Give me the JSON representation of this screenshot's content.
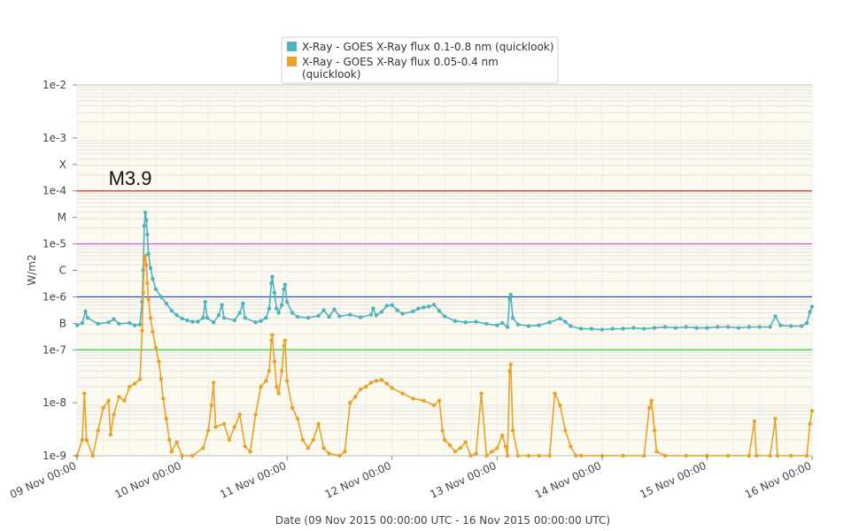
{
  "chart_data": {
    "type": "line",
    "title": "",
    "xlabel": "Date (09 Nov 2015 00:00:00 UTC - 16 Nov 2015 00:00:00 UTC)",
    "ylabel": "W/m2",
    "y_scale": "log",
    "ylim": [
      1e-09,
      0.01
    ],
    "xlim_days": [
      0,
      7
    ],
    "grid": true,
    "legend_position": "top-center",
    "y_ticks": [
      {
        "value": 0.01,
        "label": "1e-2"
      },
      {
        "value": 0.001,
        "label": "1e-3"
      },
      {
        "value": 0.0003162,
        "label": "X"
      },
      {
        "value": 0.0001,
        "label": "1e-4"
      },
      {
        "value": 3.162e-05,
        "label": "M"
      },
      {
        "value": 1e-05,
        "label": "1e-5"
      },
      {
        "value": 3.162e-06,
        "label": "C"
      },
      {
        "value": 1e-06,
        "label": "1e-6"
      },
      {
        "value": 3.162e-07,
        "label": "B"
      },
      {
        "value": 1e-07,
        "label": "1e-7"
      },
      {
        "value": 1e-08,
        "label": "1e-8"
      },
      {
        "value": 1e-09,
        "label": "1e-9"
      }
    ],
    "x_ticks": [
      {
        "day": 0,
        "label": "09 Nov 00:00"
      },
      {
        "day": 1,
        "label": "10 Nov 00:00"
      },
      {
        "day": 2,
        "label": "11 Nov 00:00"
      },
      {
        "day": 3,
        "label": "12 Nov 00:00"
      },
      {
        "day": 4,
        "label": "13 Nov 00:00"
      },
      {
        "day": 5,
        "label": "14 Nov 00:00"
      },
      {
        "day": 6,
        "label": "15 Nov 00:00"
      },
      {
        "day": 7,
        "label": "16 Nov 00:00"
      }
    ],
    "threshold_lines": [
      {
        "value": 0.0001,
        "color": "#d62728"
      },
      {
        "value": 1e-05,
        "color": "#e040e0"
      },
      {
        "value": 1e-06,
        "color": "#1f3fb4"
      },
      {
        "value": 1e-07,
        "color": "#2ecc40"
      }
    ],
    "annotations": [
      {
        "text": "M3.9",
        "day": 0.3,
        "value": 0.00013
      }
    ],
    "series": [
      {
        "name": "X-Ray - GOES X-Ray flux 0.1-0.8 nm (quicklook)",
        "color": "#4db3bf",
        "points": [
          [
            0.0,
            2.9e-07
          ],
          [
            0.05,
            3.2e-07
          ],
          [
            0.08,
            5.3e-07
          ],
          [
            0.1,
            4e-07
          ],
          [
            0.2,
            3.1e-07
          ],
          [
            0.3,
            3.3e-07
          ],
          [
            0.35,
            3.8e-07
          ],
          [
            0.4,
            3.1e-07
          ],
          [
            0.5,
            3.2e-07
          ],
          [
            0.55,
            2.9e-07
          ],
          [
            0.6,
            3e-07
          ],
          [
            0.62,
            8e-07
          ],
          [
            0.63,
            3.2e-06
          ],
          [
            0.64,
            2.2e-05
          ],
          [
            0.65,
            3.9e-05
          ],
          [
            0.66,
            2.8e-05
          ],
          [
            0.67,
            1.5e-05
          ],
          [
            0.68,
            6.5e-06
          ],
          [
            0.7,
            3.5e-06
          ],
          [
            0.72,
            2.2e-06
          ],
          [
            0.75,
            1.4e-06
          ],
          [
            0.8,
            1e-06
          ],
          [
            0.85,
            7.5e-07
          ],
          [
            0.9,
            5.5e-07
          ],
          [
            0.95,
            4.5e-07
          ],
          [
            1.0,
            3.9e-07
          ],
          [
            1.05,
            3.6e-07
          ],
          [
            1.1,
            3.4e-07
          ],
          [
            1.15,
            3.4e-07
          ],
          [
            1.2,
            4e-07
          ],
          [
            1.22,
            8e-07
          ],
          [
            1.24,
            4e-07
          ],
          [
            1.3,
            3.3e-07
          ],
          [
            1.35,
            4.5e-07
          ],
          [
            1.38,
            7e-07
          ],
          [
            1.4,
            4e-07
          ],
          [
            1.5,
            3.6e-07
          ],
          [
            1.55,
            5e-07
          ],
          [
            1.58,
            7.5e-07
          ],
          [
            1.6,
            4e-07
          ],
          [
            1.7,
            3.3e-07
          ],
          [
            1.75,
            3.5e-07
          ],
          [
            1.8,
            4e-07
          ],
          [
            1.83,
            6e-07
          ],
          [
            1.85,
            1.8e-06
          ],
          [
            1.86,
            2.4e-06
          ],
          [
            1.88,
            1.2e-06
          ],
          [
            1.9,
            6e-07
          ],
          [
            1.92,
            5e-07
          ],
          [
            1.95,
            7e-07
          ],
          [
            1.97,
            1.4e-06
          ],
          [
            1.98,
            1.7e-06
          ],
          [
            2.0,
            8e-07
          ],
          [
            2.05,
            5e-07
          ],
          [
            2.1,
            4.2e-07
          ],
          [
            2.2,
            4e-07
          ],
          [
            2.3,
            4.4e-07
          ],
          [
            2.35,
            5.6e-07
          ],
          [
            2.4,
            4.2e-07
          ],
          [
            2.45,
            5.8e-07
          ],
          [
            2.5,
            4.3e-07
          ],
          [
            2.6,
            4.6e-07
          ],
          [
            2.7,
            4.1e-07
          ],
          [
            2.8,
            4.6e-07
          ],
          [
            2.82,
            6e-07
          ],
          [
            2.85,
            4.5e-07
          ],
          [
            2.9,
            5.2e-07
          ],
          [
            2.95,
            6.8e-07
          ],
          [
            3.0,
            7e-07
          ],
          [
            3.05,
            5.6e-07
          ],
          [
            3.1,
            4.8e-07
          ],
          [
            3.2,
            5.3e-07
          ],
          [
            3.25,
            6e-07
          ],
          [
            3.3,
            6.3e-07
          ],
          [
            3.35,
            6.6e-07
          ],
          [
            3.4,
            7.1e-07
          ],
          [
            3.45,
            5.4e-07
          ],
          [
            3.5,
            4.3e-07
          ],
          [
            3.6,
            3.5e-07
          ],
          [
            3.7,
            3.3e-07
          ],
          [
            3.8,
            3.4e-07
          ],
          [
            3.9,
            3.1e-07
          ],
          [
            4.0,
            2.9e-07
          ],
          [
            4.05,
            3.2e-07
          ],
          [
            4.1,
            2.7e-07
          ],
          [
            4.12,
            9e-07
          ],
          [
            4.13,
            1.1e-06
          ],
          [
            4.15,
            4e-07
          ],
          [
            4.2,
            3e-07
          ],
          [
            4.3,
            2.8e-07
          ],
          [
            4.4,
            2.9e-07
          ],
          [
            4.5,
            3.3e-07
          ],
          [
            4.6,
            3.9e-07
          ],
          [
            4.65,
            3.4e-07
          ],
          [
            4.7,
            2.8e-07
          ],
          [
            4.8,
            2.5e-07
          ],
          [
            4.9,
            2.5e-07
          ],
          [
            5.0,
            2.4e-07
          ],
          [
            5.1,
            2.5e-07
          ],
          [
            5.2,
            2.5e-07
          ],
          [
            5.3,
            2.6e-07
          ],
          [
            5.4,
            2.5e-07
          ],
          [
            5.5,
            2.6e-07
          ],
          [
            5.6,
            2.7e-07
          ],
          [
            5.7,
            2.6e-07
          ],
          [
            5.8,
            2.7e-07
          ],
          [
            5.9,
            2.6e-07
          ],
          [
            6.0,
            2.6e-07
          ],
          [
            6.1,
            2.7e-07
          ],
          [
            6.2,
            2.7e-07
          ],
          [
            6.3,
            2.6e-07
          ],
          [
            6.4,
            2.7e-07
          ],
          [
            6.5,
            2.7e-07
          ],
          [
            6.6,
            2.7e-07
          ],
          [
            6.65,
            4.3e-07
          ],
          [
            6.7,
            2.9e-07
          ],
          [
            6.8,
            2.8e-07
          ],
          [
            6.9,
            2.8e-07
          ],
          [
            6.95,
            3.2e-07
          ],
          [
            6.98,
            5.2e-07
          ],
          [
            7.0,
            6.5e-07
          ]
        ]
      },
      {
        "name": "X-Ray - GOES X-Ray flux 0.05-0.4 nm (quicklook)",
        "color": "#e8a22a",
        "points": [
          [
            0.0,
            1e-09
          ],
          [
            0.05,
            2e-09
          ],
          [
            0.07,
            1.5e-08
          ],
          [
            0.09,
            2e-09
          ],
          [
            0.15,
            1e-09
          ],
          [
            0.2,
            3e-09
          ],
          [
            0.25,
            8e-09
          ],
          [
            0.3,
            1.1e-08
          ],
          [
            0.32,
            2.5e-09
          ],
          [
            0.35,
            6e-09
          ],
          [
            0.4,
            1.3e-08
          ],
          [
            0.45,
            1.1e-08
          ],
          [
            0.5,
            2e-08
          ],
          [
            0.55,
            2.3e-08
          ],
          [
            0.6,
            2.8e-08
          ],
          [
            0.62,
            2.3e-07
          ],
          [
            0.63,
            1.2e-06
          ],
          [
            0.64,
            5e-06
          ],
          [
            0.65,
            6e-06
          ],
          [
            0.66,
            4e-06
          ],
          [
            0.67,
            1.8e-06
          ],
          [
            0.68,
            9e-07
          ],
          [
            0.7,
            4e-07
          ],
          [
            0.72,
            2.2e-07
          ],
          [
            0.75,
            1.1e-07
          ],
          [
            0.78,
            6e-08
          ],
          [
            0.8,
            2.8e-08
          ],
          [
            0.82,
            1.2e-08
          ],
          [
            0.85,
            5e-09
          ],
          [
            0.88,
            2e-09
          ],
          [
            0.9,
            1.2e-09
          ],
          [
            0.95,
            1.8e-09
          ],
          [
            1.0,
            1e-09
          ],
          [
            1.1,
            1e-09
          ],
          [
            1.2,
            1.4e-09
          ],
          [
            1.25,
            3e-09
          ],
          [
            1.28,
            9e-09
          ],
          [
            1.3,
            2.4e-08
          ],
          [
            1.32,
            3.5e-09
          ],
          [
            1.4,
            4e-09
          ],
          [
            1.45,
            2e-09
          ],
          [
            1.5,
            3.5e-09
          ],
          [
            1.55,
            6e-09
          ],
          [
            1.6,
            1.5e-09
          ],
          [
            1.65,
            1.2e-09
          ],
          [
            1.7,
            6e-09
          ],
          [
            1.75,
            2e-08
          ],
          [
            1.8,
            2.6e-08
          ],
          [
            1.83,
            4e-08
          ],
          [
            1.85,
            1.5e-07
          ],
          [
            1.86,
            1.9e-07
          ],
          [
            1.88,
            6e-08
          ],
          [
            1.9,
            2e-08
          ],
          [
            1.92,
            1.5e-08
          ],
          [
            1.95,
            4e-08
          ],
          [
            1.97,
            1.2e-07
          ],
          [
            1.98,
            1.5e-07
          ],
          [
            2.0,
            2.6e-08
          ],
          [
            2.05,
            8e-09
          ],
          [
            2.1,
            5e-09
          ],
          [
            2.15,
            2e-09
          ],
          [
            2.2,
            1.4e-09
          ],
          [
            2.25,
            2e-09
          ],
          [
            2.3,
            4e-09
          ],
          [
            2.35,
            1.4e-09
          ],
          [
            2.4,
            1.1e-09
          ],
          [
            2.5,
            1e-09
          ],
          [
            2.55,
            1.2e-09
          ],
          [
            2.6,
            1e-08
          ],
          [
            2.65,
            1.3e-08
          ],
          [
            2.7,
            1.8e-08
          ],
          [
            2.75,
            2e-08
          ],
          [
            2.8,
            2.4e-08
          ],
          [
            2.85,
            2.6e-08
          ],
          [
            2.9,
            2.7e-08
          ],
          [
            2.95,
            2.3e-08
          ],
          [
            3.0,
            1.9e-08
          ],
          [
            3.1,
            1.5e-08
          ],
          [
            3.2,
            1.2e-08
          ],
          [
            3.3,
            1.1e-08
          ],
          [
            3.4,
            9e-09
          ],
          [
            3.45,
            1.1e-08
          ],
          [
            3.48,
            3e-09
          ],
          [
            3.5,
            2e-09
          ],
          [
            3.55,
            1.6e-09
          ],
          [
            3.6,
            1.2e-09
          ],
          [
            3.65,
            1.4e-09
          ],
          [
            3.7,
            1.8e-09
          ],
          [
            3.75,
            1e-09
          ],
          [
            3.8,
            1.1e-09
          ],
          [
            3.85,
            1.5e-08
          ],
          [
            3.9,
            1e-09
          ],
          [
            3.95,
            1.2e-09
          ],
          [
            4.0,
            1.4e-09
          ],
          [
            4.05,
            2.4e-09
          ],
          [
            4.08,
            1.5e-09
          ],
          [
            4.1,
            1e-09
          ],
          [
            4.12,
            4e-08
          ],
          [
            4.13,
            5.3e-08
          ],
          [
            4.15,
            3e-09
          ],
          [
            4.2,
            1e-09
          ],
          [
            4.3,
            1e-09
          ],
          [
            4.4,
            1e-09
          ],
          [
            4.5,
            1e-09
          ],
          [
            4.55,
            1.5e-08
          ],
          [
            4.6,
            9e-09
          ],
          [
            4.65,
            3e-09
          ],
          [
            4.7,
            1.5e-09
          ],
          [
            4.75,
            1e-09
          ],
          [
            4.8,
            1e-09
          ],
          [
            5.0,
            1e-09
          ],
          [
            5.2,
            1e-09
          ],
          [
            5.4,
            1e-09
          ],
          [
            5.45,
            8e-09
          ],
          [
            5.47,
            1.1e-08
          ],
          [
            5.5,
            3e-09
          ],
          [
            5.52,
            1.2e-09
          ],
          [
            5.6,
            1e-09
          ],
          [
            5.8,
            1e-09
          ],
          [
            6.0,
            1e-09
          ],
          [
            6.2,
            1e-09
          ],
          [
            6.4,
            1e-09
          ],
          [
            6.45,
            4.5e-09
          ],
          [
            6.47,
            1e-09
          ],
          [
            6.6,
            1e-09
          ],
          [
            6.65,
            5e-09
          ],
          [
            6.67,
            1e-09
          ],
          [
            6.8,
            1e-09
          ],
          [
            6.95,
            1e-09
          ],
          [
            6.98,
            4e-09
          ],
          [
            7.0,
            7e-09
          ]
        ]
      }
    ]
  }
}
